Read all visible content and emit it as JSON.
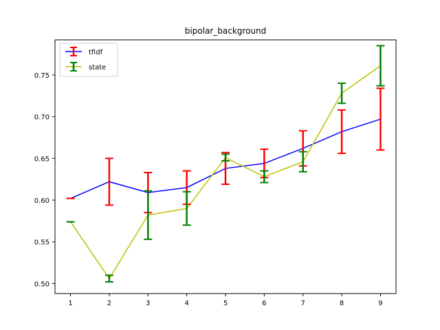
{
  "chart_data": {
    "type": "line",
    "title": "bipolar_background",
    "xlabel": "",
    "ylabel": "",
    "x": [
      1,
      2,
      3,
      4,
      5,
      6,
      7,
      8,
      9
    ],
    "xlim": [
      0.6,
      9.4
    ],
    "ylim": [
      0.488,
      0.792
    ],
    "x_ticks": [
      1,
      2,
      3,
      4,
      5,
      6,
      7,
      8,
      9
    ],
    "y_ticks": [
      0.5,
      0.55,
      0.6,
      0.65,
      0.7,
      0.75
    ],
    "y_tick_labels": [
      "0.50",
      "0.55",
      "0.60",
      "0.65",
      "0.70",
      "0.75"
    ],
    "grid": false,
    "legend_position": "upper-left",
    "series": [
      {
        "name": "tfidf",
        "line_color": "#0000ff",
        "error_color": "#ff0000",
        "values": [
          0.602,
          0.622,
          0.609,
          0.615,
          0.638,
          0.644,
          0.662,
          0.682,
          0.697
        ],
        "errors": [
          0.0,
          0.028,
          0.024,
          0.02,
          0.019,
          0.017,
          0.021,
          0.026,
          0.037
        ]
      },
      {
        "name": "state",
        "line_color": "#bfbf00",
        "error_color": "#008000",
        "values": [
          0.574,
          0.506,
          0.582,
          0.59,
          0.651,
          0.628,
          0.646,
          0.728,
          0.761
        ],
        "errors": [
          0.0,
          0.004,
          0.029,
          0.02,
          0.004,
          0.007,
          0.012,
          0.012,
          0.024
        ]
      }
    ]
  }
}
